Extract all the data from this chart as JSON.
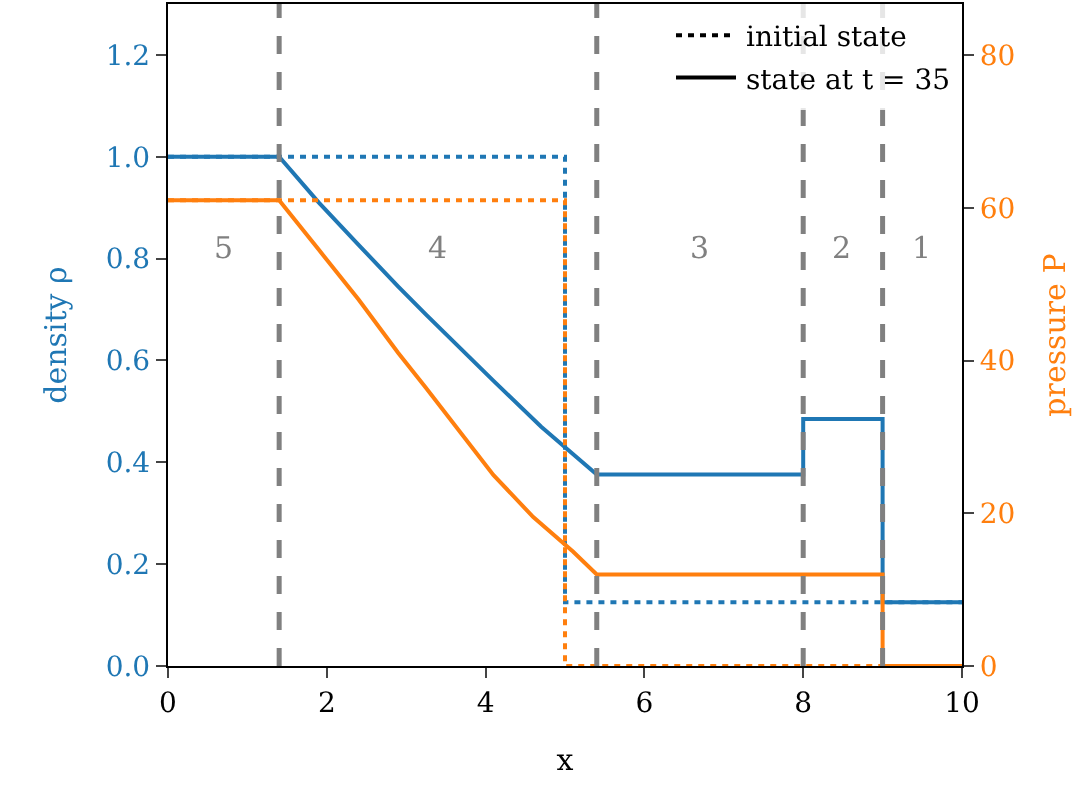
{
  "chart_data": {
    "type": "line",
    "xlabel": "x",
    "ylabel": "density ρ",
    "y2label": "pressure P",
    "xlim": [
      0,
      10
    ],
    "xticks": [
      0,
      2,
      4,
      6,
      8,
      10
    ],
    "ylim": [
      0,
      1.3
    ],
    "yticks": [
      {
        "value": 0,
        "label": "0.0"
      },
      0.2,
      0.4,
      0.6,
      0.8,
      {
        "value": 1,
        "label": "1.0"
      },
      1.2
    ],
    "y2lim": [
      0,
      86.7
    ],
    "y2ticks": [
      0,
      20,
      40,
      60,
      80
    ],
    "legend": "top right",
    "series": [
      {
        "name": "initial state",
        "color": "#000000",
        "line_style": "dotted"
      },
      {
        "name": "state at t = 35",
        "color": "#000000",
        "line_style": "solid"
      },
      {
        "color": "#1f77b4",
        "line_style": "dotted",
        "x": [
          0,
          5,
          5,
          10
        ],
        "values": [
          1.0,
          1.0,
          0.125,
          0.125
        ]
      },
      {
        "color": "#ff7f0e",
        "line_style": "dotted",
        "axis": "y2",
        "x": [
          0,
          5,
          5,
          10
        ],
        "values": [
          61,
          61,
          0,
          0
        ]
      },
      {
        "color": "#1f77b4",
        "line_style": "solid",
        "x": [
          0,
          1.4,
          1.9,
          2.4,
          2.9,
          3.25,
          4.1,
          4.7,
          5.4,
          8,
          8,
          9,
          9,
          10
        ],
        "values": [
          1.0,
          1.0,
          0.91,
          0.827,
          0.745,
          0.69,
          0.56,
          0.47,
          0.376,
          0.376,
          0.485,
          0.485,
          0.125,
          0.125
        ]
      },
      {
        "color": "#ff7f0e",
        "line_style": "solid",
        "axis": "y2",
        "x": [
          0,
          1.4,
          1.9,
          2.4,
          2.9,
          3.25,
          4.1,
          4.6,
          5.1,
          5.4,
          9,
          9,
          10
        ],
        "values": [
          61,
          61,
          54.5,
          48,
          41,
          36.4,
          25,
          19.5,
          15,
          12,
          12,
          0,
          0
        ]
      }
    ],
    "ref_lines": [
      {
        "axis": "x",
        "value": 1.4,
        "color": "#808080",
        "line_style": "dashed"
      },
      {
        "axis": "x",
        "value": 5.4,
        "color": "#808080",
        "line_style": "dashed"
      },
      {
        "axis": "x",
        "value": 8,
        "color": "#808080",
        "line_style": "dashed"
      },
      {
        "axis": "x",
        "value": 9,
        "color": "#808080",
        "line_style": "dashed"
      }
    ],
    "annotations": [
      "5",
      "4",
      "3",
      "2",
      "1"
    ]
  }
}
